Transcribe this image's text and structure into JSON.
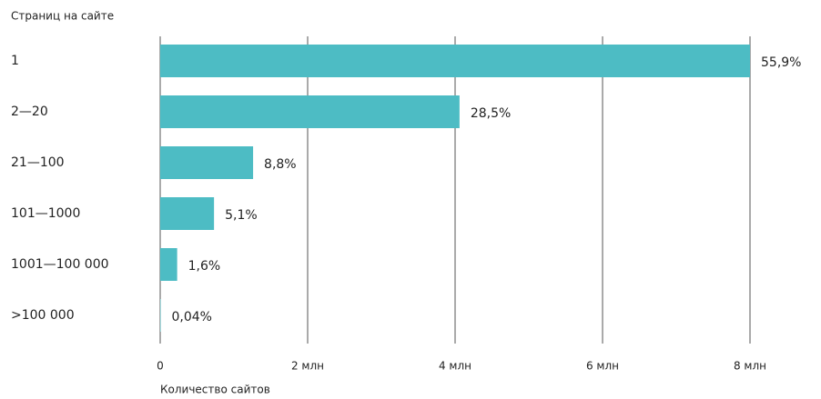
{
  "chart_data": {
    "type": "hbar",
    "y_label": "Страниц на сайте",
    "x_label": "Количество сайтов",
    "categories": [
      "1",
      "2—20",
      "21—100",
      "101—1000",
      "1001—100 000",
      ">100 000"
    ],
    "values": [
      8.0,
      4.06,
      1.26,
      0.73,
      0.23,
      0.006
    ],
    "shares": [
      55.9,
      28.5,
      8.8,
      5.1,
      1.6,
      0.04
    ],
    "share_labels": [
      "55,9%",
      "28,5%",
      "8,8%",
      "5,1%",
      "1,6%",
      "0,04%"
    ],
    "color": "#4dbcc4",
    "xlim": [
      0,
      8
    ],
    "xticks": [
      0,
      {
        "value": 2,
        "label": "2 млн"
      },
      {
        "value": 4,
        "label": "4 млн"
      },
      {
        "value": 6,
        "label": "6 млн"
      },
      {
        "value": 8,
        "label": "8 млн"
      }
    ],
    "grid": true
  }
}
